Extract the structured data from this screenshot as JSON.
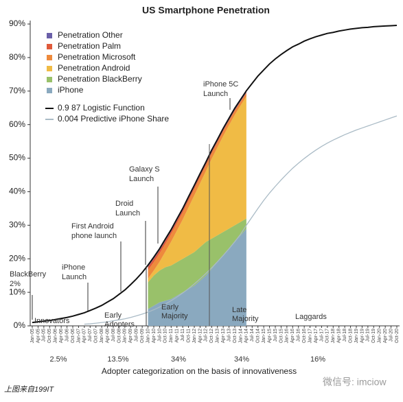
{
  "chart_data": {
    "type": "area",
    "title": "US Smartphone Penetration",
    "x_label": "Adopter categorization on the basis of innovativeness",
    "categories": [
      "Jan-05",
      "Apr-05",
      "Jul-05",
      "Oct-05",
      "Jan-06",
      "Apr-06",
      "Jul-06",
      "Oct-06",
      "Jan-07",
      "Apr-07",
      "Jul-07",
      "Oct-07",
      "Jan-08",
      "Apr-08",
      "Jul-08",
      "Oct-08",
      "Jan-09",
      "Apr-09",
      "Jul-09",
      "Oct-09",
      "Jan-10",
      "Apr-10",
      "Jul-10",
      "Oct-10",
      "Jan-11",
      "Apr-11",
      "Jul-11",
      "Oct-11",
      "Jan-12",
      "Apr-12",
      "Jul-12",
      "Oct-12",
      "Jan-13",
      "Apr-13",
      "Jul-13",
      "Oct-13",
      "Jan-14",
      "Apr-14",
      "Jul-14",
      "Oct-14",
      "Jan-15",
      "Apr-15",
      "Jul-15",
      "Oct-15",
      "Jan-16",
      "Apr-16",
      "Jul-16",
      "Oct-16",
      "Jan-17",
      "Apr-17",
      "Jul-17",
      "Oct-17",
      "Jan-18",
      "Apr-18",
      "Jul-18",
      "Oct-18",
      "Jan-19",
      "Apr-19",
      "Jul-19",
      "Oct-19",
      "Jan-20",
      "Apr-20",
      "Jul-20",
      "Oct-20"
    ],
    "ylim": [
      0,
      90
    ],
    "yticks": [
      {
        "value": 0,
        "label": "0%"
      },
      {
        "value": 10,
        "label": "10%"
      },
      {
        "value": 20,
        "label": "20%"
      },
      {
        "value": 30,
        "label": "30%"
      },
      {
        "value": 40,
        "label": "40%"
      },
      {
        "value": 50,
        "label": "50%"
      },
      {
        "value": 60,
        "label": "60%"
      },
      {
        "value": 70,
        "label": "70%"
      },
      {
        "value": 80,
        "label": "80%"
      },
      {
        "value": 90,
        "label": "90%"
      }
    ],
    "stacked": true,
    "legend": "upper left",
    "series": [
      {
        "name": "Penetration Other",
        "type": "area",
        "color": "#6a5fa8",
        "values": [
          null,
          null,
          null,
          null,
          null,
          null,
          null,
          null,
          null,
          null,
          null,
          null,
          null,
          null,
          null,
          null,
          null,
          null,
          null,
          null,
          0.5,
          0.5,
          0.5,
          0.5,
          0.5,
          0.5,
          0.5,
          0.5,
          0.5,
          0.5,
          0.5,
          0.5,
          0.5,
          0.5,
          0.5,
          0.5,
          0.5,
          0.5,
          null,
          null,
          null,
          null,
          null,
          null,
          null,
          null,
          null,
          null,
          null,
          null,
          null,
          null,
          null,
          null,
          null,
          null,
          null,
          null,
          null,
          null,
          null,
          null,
          null,
          null
        ]
      },
      {
        "name": "Penetration Palm",
        "type": "area",
        "color": "#e05a3a",
        "values": [
          null,
          null,
          null,
          null,
          null,
          null,
          null,
          null,
          null,
          null,
          null,
          null,
          null,
          null,
          null,
          null,
          null,
          null,
          null,
          null,
          1.0,
          1.0,
          0.9,
          0.9,
          0.8,
          0.8,
          0.7,
          0.7,
          0.6,
          0.6,
          0.5,
          0.5,
          0.4,
          0.4,
          0.3,
          0.3,
          0.2,
          0.2,
          null,
          null,
          null,
          null,
          null,
          null,
          null,
          null,
          null,
          null,
          null,
          null,
          null,
          null,
          null,
          null,
          null,
          null,
          null,
          null,
          null,
          null,
          null,
          null,
          null,
          null
        ]
      },
      {
        "name": "Penetration Microsoft",
        "type": "area",
        "color": "#ee8a3c",
        "values": [
          null,
          null,
          null,
          null,
          null,
          null,
          null,
          null,
          null,
          null,
          null,
          null,
          null,
          null,
          null,
          null,
          null,
          null,
          null,
          null,
          2.5,
          2.5,
          2.5,
          2.4,
          2.3,
          2.2,
          2.1,
          2.0,
          1.9,
          1.8,
          1.7,
          1.6,
          1.5,
          1.4,
          1.3,
          1.2,
          1.1,
          1.0,
          null,
          null,
          null,
          null,
          null,
          null,
          null,
          null,
          null,
          null,
          null,
          null,
          null,
          null,
          null,
          null,
          null,
          null,
          null,
          null,
          null,
          null,
          null,
          null,
          null,
          null
        ]
      },
      {
        "name": "Penetration Android",
        "type": "area",
        "color": "#f0bb45",
        "values": [
          null,
          null,
          null,
          null,
          null,
          null,
          null,
          null,
          null,
          null,
          null,
          null,
          null,
          null,
          null,
          null,
          null,
          null,
          null,
          null,
          1.1,
          1.5,
          2.6,
          4.6,
          7.1,
          9.4,
          11.7,
          14.3,
          16.9,
          19.0,
          21.1,
          23.8,
          26.2,
          28.6,
          30.8,
          32.9,
          34.7,
          36.4,
          null,
          null,
          null,
          null,
          null,
          null,
          null,
          null,
          null,
          null,
          null,
          null,
          null,
          null,
          null,
          null,
          null,
          null,
          null,
          null,
          null,
          null,
          null,
          null,
          null,
          null
        ]
      },
      {
        "name": "Penetration BlackBerry",
        "type": "area",
        "color": "#99c16a",
        "values": [
          null,
          null,
          null,
          null,
          null,
          null,
          null,
          null,
          null,
          null,
          null,
          null,
          null,
          null,
          null,
          null,
          null,
          null,
          null,
          null,
          8,
          9,
          9.5,
          10,
          10,
          10,
          10,
          10,
          10,
          10,
          10,
          9,
          8,
          7,
          6,
          5,
          4,
          3,
          null,
          null,
          null,
          null,
          null,
          null,
          null,
          null,
          null,
          null,
          null,
          null,
          null,
          null,
          null,
          null,
          null,
          null,
          null,
          null,
          null,
          null,
          null,
          null,
          null,
          null
        ]
      },
      {
        "name": "iPhone",
        "type": "area",
        "color": "#8aa9bf",
        "values": [
          null,
          null,
          null,
          null,
          null,
          null,
          null,
          null,
          null,
          null,
          null,
          null,
          null,
          null,
          null,
          null,
          null,
          null,
          null,
          null,
          5,
          6,
          7,
          7.5,
          8,
          9,
          10,
          11,
          12,
          13.5,
          15,
          17,
          19,
          21,
          23,
          25,
          27,
          29,
          null,
          null,
          null,
          null,
          null,
          null,
          null,
          null,
          null,
          null,
          null,
          null,
          null,
          null,
          null,
          null,
          null,
          null,
          null,
          null,
          null,
          null,
          null,
          null,
          null,
          null
        ]
      },
      {
        "name": "0.9 87 Logistic Function",
        "type": "line",
        "color": "#111111",
        "values": [
          1.0,
          1.2,
          1.4,
          1.6,
          1.9,
          2.2,
          2.5,
          2.9,
          3.4,
          3.9,
          4.6,
          5.3,
          6.1,
          7.1,
          8.1,
          9.4,
          10.7,
          12.3,
          14.0,
          15.9,
          18.1,
          20.5,
          23.0,
          25.9,
          28.7,
          31.9,
          35.0,
          38.5,
          41.9,
          45.4,
          48.8,
          52.4,
          55.6,
          58.9,
          61.9,
          64.9,
          67.5,
          70.1,
          72.3,
          74.5,
          76.3,
          78.1,
          79.6,
          80.9,
          82.1,
          83.2,
          84.0,
          84.9,
          85.6,
          86.2,
          86.7,
          87.2,
          87.5,
          87.9,
          88.2,
          88.5,
          88.7,
          88.9,
          89.0,
          89.2,
          89.3,
          89.4,
          89.5,
          89.6
        ]
      },
      {
        "name": "0.004 Predictive iPhone Share",
        "type": "line",
        "color": "#aabbc6",
        "values": [
          null,
          null,
          null,
          null,
          null,
          null,
          null,
          null,
          null,
          0.5,
          0.6,
          0.8,
          1.0,
          1.2,
          1.5,
          1.8,
          2.1,
          2.5,
          3.0,
          3.5,
          4.1,
          4.8,
          5.6,
          6.5,
          7.5,
          8.6,
          9.8,
          11.1,
          12.5,
          14.0,
          15.6,
          17.3,
          19.1,
          21.0,
          23.0,
          25.1,
          27.3,
          30.0,
          32.5,
          35,
          37.4,
          39.6,
          41.6,
          43.5,
          45.3,
          47,
          48.5,
          49.9,
          51.2,
          52.4,
          53.5,
          54.5,
          55.4,
          56.2,
          57,
          57.7,
          58.4,
          59,
          59.6,
          60.2,
          60.8,
          61.4,
          62,
          62.6
        ]
      }
    ],
    "annotations": [
      "BlackBerry 2%",
      "iPhone Launch",
      "First Android phone launch",
      "Droid Launch",
      "Galaxy S Launch",
      "iPhone 5C Launch"
    ],
    "adopter_groups": [
      {
        "name": "Innovators",
        "share": "2.5%"
      },
      {
        "name": "Early Adopters",
        "share": "13.5%"
      },
      {
        "name": "Early Majority",
        "share": "34%"
      },
      {
        "name": "Late Majority",
        "share": "34%"
      },
      {
        "name": "Laggards",
        "share": "16%"
      }
    ]
  },
  "footer": {
    "source": "上图来自199IT",
    "watermark": "微信号: imciow"
  }
}
